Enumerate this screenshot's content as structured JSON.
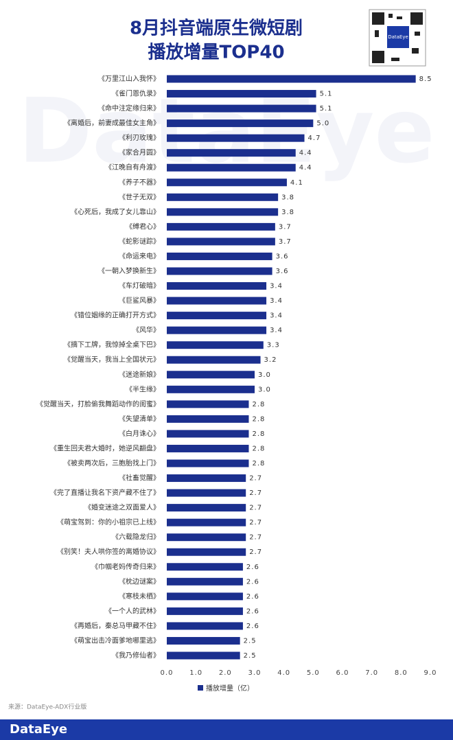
{
  "chart_data": {
    "type": "barh",
    "title": "8月抖音端原生微短剧",
    "subtitle": "播放增量TOP40",
    "categories": [
      "《万里江山入我怀》",
      "《雀门恩仇录》",
      "《命中注定缘归来》",
      "《离婚后，前妻成最佳女主角》",
      "《利刃玫瑰》",
      "《家合月圆》",
      "《江晚自有舟渡》",
      "《养子不器》",
      "《世子无双》",
      "《心死后，我成了女儿靠山》",
      "《缚君心》",
      "《蛇影谜踪》",
      "《命运来电》",
      "《一朝入梦换新生》",
      "《车灯破暗》",
      "《巨鲨风暴》",
      "《错位姻缘的正确打开方式》",
      "《风华》",
      "《摘下工牌，我惊掉全桌下巴》",
      "《觉醒当天，我当上全国状元》",
      "《迷途新娘》",
      "《半生缘》",
      "《觉醒当天，打脸偷我舞蹈动作的闺蜜》",
      "《失望清单》",
      "《白月诛心》",
      "《重生回夫君大婚时，她逆风翻盘》",
      "《被卖两次后，三胞胎找上门》",
      "《社畜觉醒》",
      "《完了直播让我名下资产藏不住了》",
      "《婚变迷途之双面爱人》",
      "《萌宝驾到：你的小祖宗已上线》",
      "《六载隐龙归》",
      "《别笑！夫人哄你签的离婚协议》",
      "《巾帼老妈传奇归来》",
      "《枕边谜案》",
      "《寒枝未栖》",
      "《一个人的武林》",
      "《再婚后，秦总马甲藏不住》",
      "《萌宝出击冷面爹地哪里逃》",
      "《我乃修仙者》"
    ],
    "series": [
      {
        "name": "播放增量（亿）",
        "color": "#1b2f8e",
        "values": [
          8.5,
          5.1,
          5.1,
          5.0,
          4.7,
          4.4,
          4.4,
          4.1,
          3.8,
          3.8,
          3.7,
          3.7,
          3.6,
          3.6,
          3.4,
          3.4,
          3.4,
          3.4,
          3.3,
          3.2,
          3.0,
          3.0,
          2.8,
          2.8,
          2.8,
          2.8,
          2.8,
          2.7,
          2.7,
          2.7,
          2.7,
          2.7,
          2.7,
          2.6,
          2.6,
          2.6,
          2.6,
          2.6,
          2.5,
          2.5
        ],
        "value_labels": [
          "8.5",
          "5.1",
          "5.1",
          "5.0",
          "4.7",
          "4.4",
          "4.4",
          "4.1",
          "3.8",
          "3.8",
          "3.7",
          "3.7",
          "3.6",
          "3.6",
          "3.4",
          "3.4",
          "3.4",
          "3.4",
          "3.3",
          "3.2",
          "3.0",
          "3.0",
          "2.8",
          "2.8",
          "2.8",
          "2.8",
          "2.8",
          "2.7",
          "2.7",
          "2.7",
          "2.7",
          "2.7",
          "2.7",
          "2.6",
          "2.6",
          "2.6",
          "2.6",
          "2.6",
          "2.5",
          "2.5"
        ]
      }
    ],
    "xlim": [
      0,
      9
    ],
    "xticks": [
      {
        "value": 0,
        "label": "0.0"
      },
      {
        "value": 1,
        "label": "1.0"
      },
      {
        "value": 2,
        "label": "2.0"
      },
      {
        "value": 3,
        "label": "3.0"
      },
      {
        "value": 4,
        "label": "4.0"
      },
      {
        "value": 5,
        "label": "5.0"
      },
      {
        "value": 6,
        "label": "6.0"
      },
      {
        "value": 7,
        "label": "7.0"
      },
      {
        "value": 8,
        "label": "8.0"
      },
      {
        "value": 9,
        "label": "9.0"
      }
    ],
    "source": "来源：DataEye-ADX行业版",
    "brand": "DataEye",
    "qr_label": "DataEye"
  }
}
